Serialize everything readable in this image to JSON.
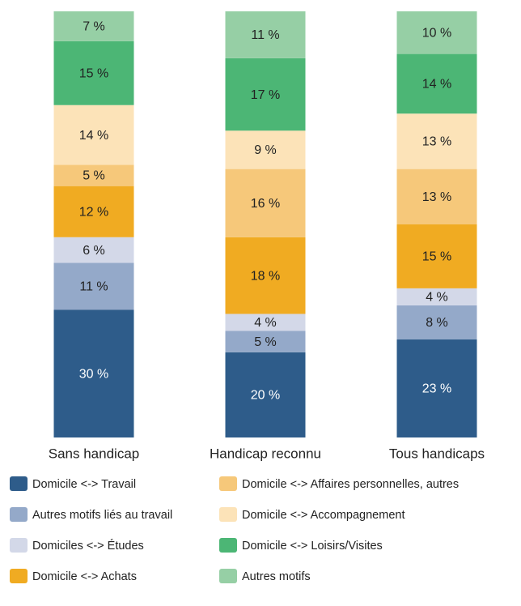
{
  "chart_data": {
    "type": "stacked_bar",
    "categories": [
      "Sans handicap",
      "Handicap reconnu",
      "Tous handicaps"
    ],
    "ylim": [
      0,
      100
    ],
    "series": [
      {
        "name": "Domicile <-> Travail",
        "color": "#2e5c8a",
        "values": [
          30,
          20,
          23
        ],
        "value_labels": [
          "30 %",
          "20 %",
          "23 %"
        ]
      },
      {
        "name": "Autres motifs liés au travail",
        "color": "#94a9c9",
        "values": [
          11,
          5,
          8
        ],
        "value_labels": [
          "11 %",
          "5 %",
          "8 %"
        ]
      },
      {
        "name": "Domiciles <-> Études",
        "color": "#d3d8e8",
        "values": [
          6,
          4,
          4
        ],
        "value_labels": [
          "6 %",
          "4 %",
          "4 %"
        ]
      },
      {
        "name": "Domicile <-> Achats",
        "color": "#f0ab22",
        "values": [
          12,
          18,
          15
        ],
        "value_labels": [
          "12 %",
          "18 %",
          "15 %"
        ]
      },
      {
        "name": "Domicile <-> Affaires personnelles, autres",
        "color": "#f6c87a",
        "values": [
          5,
          16,
          13
        ],
        "value_labels": [
          "5 %",
          "16 %",
          "13 %"
        ]
      },
      {
        "name": "Domicile <-> Accompagnement",
        "color": "#fce3b8",
        "values": [
          14,
          9,
          13
        ],
        "value_labels": [
          "14 %",
          "9 %",
          "13 %"
        ]
      },
      {
        "name": "Domicile <-> Loisirs/Visites",
        "color": "#4cb675",
        "values": [
          15,
          17,
          14
        ],
        "value_labels": [
          "15 %",
          "17 %",
          "14 %"
        ]
      },
      {
        "name": "Autres motifs",
        "color": "#96cfa5",
        "values": [
          7,
          11,
          10
        ],
        "value_labels": [
          "7 %",
          "11 %",
          "10 %"
        ]
      }
    ]
  }
}
